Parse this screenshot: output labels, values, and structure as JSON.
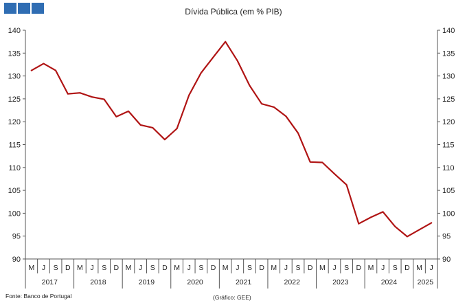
{
  "chart_data": {
    "type": "line",
    "title": "Dívida Pública (em % PIB)",
    "source": "Fonte: Banco de Portugal",
    "credit": "(Gráfico: GEE)",
    "ylim": [
      90,
      140
    ],
    "y_ticks": [
      90,
      95,
      100,
      105,
      110,
      115,
      120,
      125,
      130,
      135,
      140
    ],
    "grid": false,
    "line_color": "#b01414",
    "month_labels": [
      "M",
      "J",
      "S",
      "D",
      "M",
      "J",
      "S",
      "D",
      "M",
      "J",
      "S",
      "D",
      "M",
      "J",
      "S",
      "D",
      "M",
      "J",
      "S",
      "D",
      "M",
      "J",
      "S",
      "D",
      "M",
      "J",
      "S",
      "D",
      "M",
      "J",
      "S",
      "D",
      "M",
      "J"
    ],
    "year_labels": [
      "2017",
      "2018",
      "2019",
      "2020",
      "2021",
      "2022",
      "2023",
      "2024",
      "2025"
    ],
    "series": [
      {
        "values": [
          131.2,
          132.7,
          131.2,
          126.1,
          126.3,
          125.4,
          124.9,
          121.1,
          122.3,
          119.3,
          118.7,
          116.1,
          118.5,
          125.8,
          130.7,
          134.1,
          137.5,
          133.3,
          127.9,
          123.9,
          123.2,
          121.2,
          117.5,
          111.2,
          111.1,
          108.6,
          106.2,
          97.7,
          99.1,
          100.3,
          97.1,
          94.9,
          96.4,
          97.9
        ]
      }
    ]
  }
}
